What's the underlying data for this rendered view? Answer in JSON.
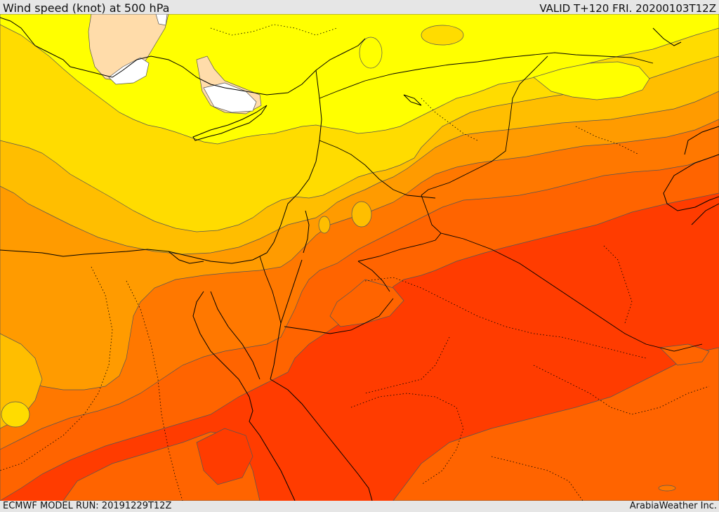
{
  "header": {
    "title": "Wind speed (knot) at 500 hPa",
    "valid": "VALID T+120 FRI. 20200103T12Z"
  },
  "footer": {
    "model_run": "ECMWF MODEL RUN: 20191229T12Z",
    "credit": "ArabiaWeather Inc."
  },
  "colors": {
    "calm": "#ffffff",
    "band_1": "#ffdcaa",
    "band_2": "#ffff00",
    "band_3": "#ffdc00",
    "band_4": "#ffbe00",
    "band_5": "#ff9b00",
    "band_6": "#ff7800",
    "band_7": "#ff6400",
    "band_8": "#ff3c00",
    "contour": "#555555",
    "border": "#000000"
  }
}
